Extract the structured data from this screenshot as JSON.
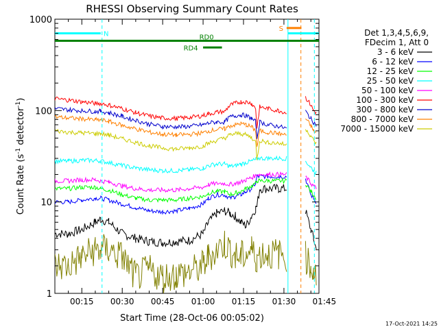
{
  "chart_data": {
    "type": "line",
    "title": "RHESSI Observing Summary Count Rates",
    "xlabel": "Start Time (28-Oct-06 00:05:02)",
    "ylabel_main": "Count Rate (s",
    "ylabel_sup1": "-1",
    "ylabel_mid": " detector",
    "ylabel_sup2": "-1",
    "ylabel_end": ")",
    "y_scale": "log",
    "ylim": [
      1,
      1000
    ],
    "xlim_minutes": [
      5,
      103
    ],
    "x_ticks": [
      {
        "m": 15,
        "label": "00:15"
      },
      {
        "m": 30,
        "label": "00:30"
      },
      {
        "m": 45,
        "label": "00:45"
      },
      {
        "m": 60,
        "label": "01:00"
      },
      {
        "m": 75,
        "label": "01:15"
      },
      {
        "m": 90,
        "label": "01:30"
      },
      {
        "m": 105,
        "label": "01:45"
      }
    ],
    "y_ticks": [
      {
        "v": 1,
        "label": "1"
      },
      {
        "v": 10,
        "label": "10"
      },
      {
        "v": 100,
        "label": "100"
      },
      {
        "v": 1000,
        "label": "1000"
      }
    ],
    "legend_header": [
      "Det 1,3,4,5,6,9,",
      "FDecim 1, Att 0"
    ],
    "series": [
      {
        "name": "3 - 6 keV",
        "color": "#000000",
        "x": [
          5,
          10,
          15,
          20,
          22,
          25,
          30,
          35,
          40,
          45,
          50,
          55,
          60,
          62,
          65,
          68,
          70,
          72,
          74,
          76,
          78,
          79.5,
          80,
          81,
          84,
          88,
          91,
          91.5,
          93,
          96,
          97,
          98,
          100,
          101,
          102
        ],
        "y": [
          4.5,
          4.5,
          5,
          6,
          6.5,
          6,
          4.5,
          4,
          3.7,
          3.6,
          3.7,
          3.8,
          4.5,
          6,
          7.5,
          8,
          7.5,
          7,
          6,
          5.5,
          7,
          8.5,
          9,
          14,
          14,
          14,
          14,
          null,
          null,
          null,
          null,
          8,
          5,
          4,
          3
        ]
      },
      {
        "name": "6 - 12 keV",
        "color": "#0000ff",
        "x": [
          5,
          10,
          15,
          20,
          22,
          25,
          30,
          35,
          40,
          45,
          50,
          55,
          60,
          62,
          65,
          68,
          70,
          72,
          74,
          76,
          78,
          79.5,
          80,
          81,
          84,
          88,
          91,
          91.5,
          93,
          96,
          97,
          98,
          100,
          101,
          102
        ],
        "y": [
          10,
          10,
          10.5,
          11,
          11,
          10.5,
          9.5,
          8.7,
          8,
          7.8,
          8,
          8.5,
          9.5,
          11,
          12,
          12,
          11,
          11.5,
          12,
          13,
          14,
          16,
          19,
          19,
          19,
          19,
          19,
          null,
          null,
          null,
          null,
          18,
          12,
          11,
          10
        ]
      },
      {
        "name": "12 - 25 keV",
        "color": "#00ff00",
        "x": [
          5,
          10,
          15,
          20,
          22,
          25,
          30,
          35,
          40,
          45,
          50,
          55,
          60,
          62,
          65,
          68,
          70,
          72,
          74,
          76,
          78,
          79.5,
          80,
          81,
          84,
          88,
          91,
          91.5,
          93,
          96,
          97,
          98,
          100,
          101,
          102
        ],
        "y": [
          14,
          14,
          14.5,
          14.5,
          14,
          13.5,
          12,
          11,
          10.5,
          10.5,
          10.5,
          11,
          11.5,
          12.5,
          13,
          13,
          12,
          12.5,
          13,
          14,
          15,
          16,
          17,
          17,
          17,
          17,
          17,
          null,
          null,
          null,
          null,
          16,
          13,
          12,
          11
        ]
      },
      {
        "name": "25 - 50 keV",
        "color": "#00ffff",
        "x": [
          5,
          10,
          15,
          20,
          22,
          25,
          30,
          35,
          40,
          45,
          50,
          55,
          60,
          62,
          65,
          68,
          70,
          72,
          74,
          76,
          78,
          79.5,
          80,
          81,
          84,
          88,
          91,
          91.5,
          93,
          96,
          97,
          98,
          100,
          101,
          102
        ],
        "y": [
          28,
          28,
          28.5,
          28.5,
          28,
          27,
          25,
          23.5,
          22.5,
          22,
          22,
          22.5,
          23.5,
          25,
          26,
          26,
          24.5,
          25,
          26,
          27,
          28,
          29,
          30,
          30,
          30,
          30,
          30,
          null,
          null,
          null,
          null,
          28,
          24,
          22,
          21
        ]
      },
      {
        "name": "50 - 100 keV",
        "color": "#ff00ff",
        "x": [
          5,
          10,
          15,
          20,
          22,
          25,
          30,
          35,
          40,
          45,
          50,
          55,
          60,
          62,
          65,
          68,
          70,
          72,
          74,
          76,
          78,
          79.5,
          80,
          81,
          84,
          88,
          91,
          91.5,
          93,
          96,
          97,
          98,
          100,
          101,
          102
        ],
        "y": [
          17,
          17,
          17.5,
          17.5,
          17,
          16.5,
          15,
          14,
          13.5,
          13.5,
          13.5,
          14,
          14.5,
          15.5,
          16,
          16,
          15.5,
          16,
          16.5,
          17.5,
          18.5,
          19.5,
          20,
          20,
          20,
          20,
          20,
          null,
          null,
          null,
          null,
          19,
          16,
          15,
          14
        ]
      },
      {
        "name": "100 - 300 keV",
        "color": "#ff0000",
        "x": [
          5,
          10,
          15,
          20,
          22,
          25,
          30,
          35,
          40,
          45,
          50,
          55,
          60,
          62,
          65,
          68,
          70,
          72,
          74,
          76,
          78,
          79.5,
          80,
          81,
          84,
          88,
          91,
          91.5,
          93,
          96,
          97,
          98,
          100,
          101,
          102
        ],
        "y": [
          135,
          130,
          125,
          120,
          120,
          115,
          105,
          95,
          87,
          83,
          82,
          84,
          88,
          92,
          96,
          98,
          115,
          120,
          125,
          125,
          120,
          105,
          65,
          110,
          105,
          100,
          95,
          null,
          null,
          null,
          null,
          140,
          115,
          100,
          95
        ]
      },
      {
        "name": "300 - 800 keV",
        "color": "#0000cc",
        "x": [
          5,
          10,
          15,
          20,
          22,
          25,
          30,
          35,
          40,
          45,
          50,
          55,
          60,
          62,
          65,
          68,
          70,
          72,
          74,
          76,
          78,
          79.5,
          80,
          81,
          84,
          88,
          91,
          91.5,
          93,
          96,
          97,
          98,
          100,
          101,
          102
        ],
        "y": [
          105,
          102,
          100,
          98,
          98,
          95,
          86,
          78,
          71,
          67,
          66,
          67,
          70,
          73,
          75,
          75,
          85,
          88,
          90,
          88,
          82,
          75,
          50,
          75,
          70,
          67,
          64,
          null,
          null,
          null,
          null,
          98,
          82,
          74,
          70
        ]
      },
      {
        "name": "800 - 7000 keV",
        "color": "#ff8000",
        "x": [
          5,
          10,
          15,
          20,
          22,
          25,
          30,
          35,
          40,
          45,
          50,
          55,
          60,
          62,
          65,
          68,
          70,
          72,
          74,
          76,
          78,
          79.5,
          80,
          81,
          84,
          88,
          91,
          91.5,
          93,
          96,
          97,
          98,
          100,
          101,
          102
        ],
        "y": [
          85,
          83,
          81,
          79,
          79,
          76,
          69,
          63,
          58,
          55,
          54,
          55,
          57,
          60,
          62,
          63,
          68,
          70,
          72,
          70,
          66,
          60,
          40,
          60,
          58,
          56,
          54,
          null,
          null,
          null,
          null,
          82,
          68,
          60,
          57
        ]
      },
      {
        "name": "7000 - 15000 keV",
        "color": "#cccc00",
        "x": [
          5,
          10,
          15,
          20,
          22,
          25,
          30,
          35,
          40,
          45,
          50,
          55,
          60,
          62,
          65,
          68,
          70,
          72,
          74,
          76,
          78,
          79.5,
          80,
          81,
          84,
          88,
          91,
          91.5,
          93,
          96,
          97,
          98,
          100,
          101,
          102
        ],
        "y": [
          60,
          58,
          57,
          56,
          56,
          54,
          49,
          45,
          41,
          39,
          38,
          39,
          41,
          44,
          47,
          50,
          54,
          56,
          56,
          54,
          51,
          45,
          30,
          47,
          45,
          44,
          42,
          null,
          null,
          null,
          null,
          64,
          53,
          47,
          44
        ]
      },
      {
        "name": "",
        "color": "#808000",
        "x": [
          5,
          10,
          15,
          20,
          22,
          25,
          30,
          35,
          40,
          45,
          50,
          55,
          60,
          62,
          65,
          68,
          70,
          72,
          74,
          76,
          78,
          79.5,
          80,
          81,
          84,
          88,
          91,
          91.5,
          93,
          96,
          97,
          98,
          100,
          101,
          102
        ],
        "y": [
          2,
          2,
          2.5,
          3,
          3,
          3,
          2.5,
          1.5,
          1.8,
          1.5,
          1.6,
          1.7,
          2,
          2.5,
          3,
          3.5,
          3,
          2.5,
          2.5,
          2.7,
          3,
          2.5,
          2.5,
          2.7,
          2.7,
          2.7,
          2.5,
          null,
          null,
          null,
          null,
          2.5,
          2,
          1.8,
          1.5
        ]
      }
    ],
    "annotations": [
      {
        "kind": "bar",
        "label": "N",
        "color": "#00ffff",
        "x_start": 5,
        "x_end": 22,
        "y": 700
      },
      {
        "kind": "bar",
        "label": "S",
        "color": "#ff8000",
        "x_start": 91,
        "x_end": 96.5,
        "y": 800
      },
      {
        "kind": "bar",
        "label": "",
        "color": "#00ffff",
        "x_start": 91.5,
        "x_end": 103,
        "y": 700
      },
      {
        "kind": "bar",
        "label": "RD0",
        "color": "#008000",
        "x_start": 5,
        "x_end": 103,
        "y": 580
      },
      {
        "kind": "bar",
        "label": "RD4",
        "color": "#008000",
        "x_start": 60,
        "x_end": 67,
        "y": 490
      }
    ],
    "vlines": [
      {
        "x": 22.5,
        "color": "#00ffff",
        "style": "dashed"
      },
      {
        "x": 91.5,
        "color": "#00ffff",
        "style": "solid"
      },
      {
        "x": 96.3,
        "color": "#ff8000",
        "style": "dashed"
      },
      {
        "x": 101.3,
        "color": "#00ffff",
        "style": "dashed"
      }
    ],
    "legend_placement": "right",
    "grid": false
  },
  "footer_date": "17-Oct-2021 14:25"
}
